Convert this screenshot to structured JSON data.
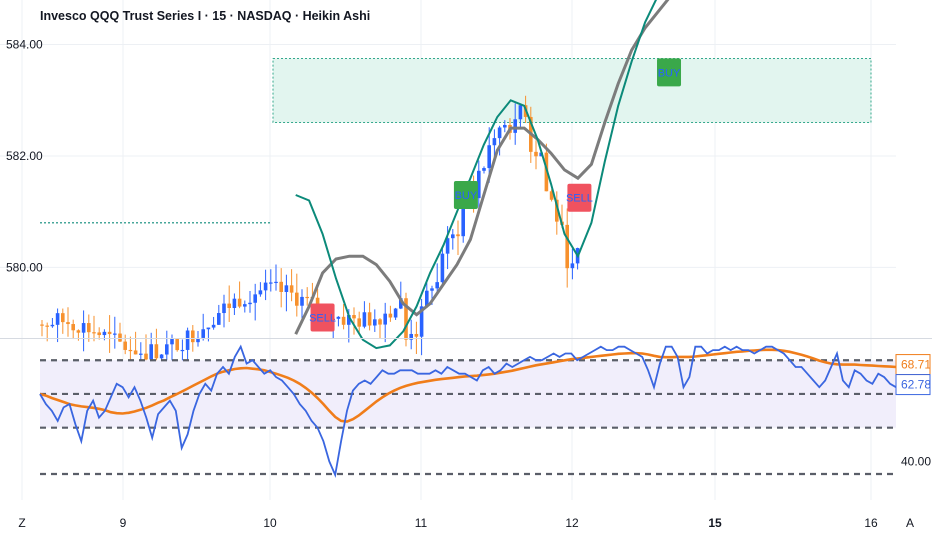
{
  "header": {
    "symbol_title": "Invesco QQQ Trust Series I · 15 · NASDAQ · Heikin Ashi"
  },
  "colors": {
    "up": "#2962ff",
    "down": "#f7912d",
    "teal": "#0c8a7a",
    "gray_ma": "#7c7c7c",
    "zone_fill": "#e2f5ef",
    "zone_border": "#34a88c",
    "buy_badge": "#3aa84a",
    "sell_badge": "#f0525f",
    "rsi": "#3a66e0",
    "rsi_ma": "#f07d1a",
    "band_fill": "#f1eefb",
    "grid": "#edf0f4"
  },
  "chart_data": [
    {
      "type": "candlestick",
      "name": "price",
      "y_axis_labels": [
        "584.00",
        "582.00",
        "580.00"
      ],
      "ylim": [
        578.75,
        584.8
      ],
      "x_axis_labels": [
        "Z",
        "9",
        "9",
        "10",
        "11",
        "12",
        "15",
        "16",
        "A"
      ],
      "bold_x_labels": [
        "15"
      ],
      "ma_fast": [
        581.3,
        581.2,
        580.6,
        579.8,
        579.1,
        578.7,
        578.55,
        578.6,
        578.85,
        579.3,
        579.9,
        580.4,
        581.0,
        581.6,
        582.2,
        582.7,
        583.0,
        582.9,
        582.3,
        581.5,
        580.6,
        580.2,
        580.8,
        581.9,
        582.9,
        583.7,
        584.4,
        584.9,
        585.3
      ],
      "ma_slow": [
        578.8,
        579.3,
        579.9,
        580.15,
        580.2,
        580.2,
        580.05,
        579.75,
        579.35,
        579.15,
        579.35,
        579.7,
        580.05,
        580.5,
        581.3,
        582.1,
        582.5,
        582.5,
        582.3,
        582.05,
        581.75,
        581.6,
        581.85,
        582.6,
        583.3,
        583.9,
        584.3,
        584.6,
        584.9
      ],
      "ma_x": [
        9.9,
        10.35,
        10.8,
        11.25,
        11.7,
        12.15,
        12.6,
        13.05,
        13.5,
        13.95,
        14.4,
        14.85,
        15.3,
        15.75,
        16.2,
        16.65,
        17.1,
        17.55,
        18.0,
        18.45,
        18.9,
        19.35,
        19.8,
        20.25,
        20.7,
        21.15,
        21.6,
        22.05,
        22.5
      ],
      "resistance_zone": [
        582.6,
        583.75
      ],
      "support_line": 580.8,
      "signals": [
        {
          "label": "SELL",
          "x": 10.8,
          "y": 579.1,
          "kind": "sell"
        },
        {
          "label": "BUY",
          "x": 15.6,
          "y": 581.3,
          "kind": "buy"
        },
        {
          "label": "SELL",
          "x": 19.4,
          "y": 581.25,
          "kind": "sell"
        },
        {
          "label": "BUY",
          "x": 22.4,
          "y": 583.5,
          "kind": "buy"
        }
      ]
    },
    {
      "type": "line",
      "name": "rsi",
      "y_axis_labels": [
        "68.71",
        "62.78",
        "40.00"
      ],
      "ylim": [
        33,
        76
      ],
      "levels": [
        70,
        60,
        50,
        40
      ],
      "rsi": [
        60,
        57,
        55,
        52,
        56,
        57,
        51,
        46,
        55,
        58,
        53,
        55,
        59,
        63,
        62,
        59,
        62,
        58,
        53,
        47,
        54,
        56,
        58,
        55,
        44,
        48,
        55,
        60,
        63,
        61,
        66,
        68,
        66,
        71,
        74,
        69,
        70,
        68,
        66,
        67,
        65,
        64,
        62,
        60,
        57,
        55,
        52,
        50,
        46,
        40,
        36,
        46,
        55,
        61,
        63,
        64,
        63,
        65,
        67,
        66,
        66,
        67,
        67,
        67,
        66,
        66,
        66,
        67,
        66,
        68,
        67,
        66,
        66,
        65,
        64,
        67,
        68,
        66,
        67,
        69,
        68,
        69,
        70,
        71,
        70,
        70,
        71,
        72,
        71,
        72,
        72,
        70,
        71,
        72,
        73,
        74,
        73,
        73,
        74,
        74,
        73,
        72,
        71,
        67,
        62,
        69,
        74,
        74,
        71,
        62,
        65,
        74,
        74,
        72,
        73,
        73,
        74,
        73,
        74,
        73,
        73,
        72,
        73,
        74,
        74,
        73,
        72,
        70,
        68,
        68,
        66,
        64,
        62,
        64,
        68,
        72,
        64,
        62,
        67,
        66,
        64,
        63,
        66,
        65,
        63,
        62
      ],
      "rsi_ma": [
        60,
        59.5,
        58.8,
        58.2,
        57.6,
        57.0,
        56.6,
        56.3,
        56.1,
        55.9,
        55.6,
        55.2,
        54.6,
        54.3,
        54.2,
        54.4,
        54.8,
        55.3,
        55.9,
        56.6,
        57.4,
        58.1,
        59.0,
        59.8,
        60.7,
        61.6,
        62.5,
        63.4,
        64.3,
        65.2,
        66.0,
        66.6,
        67.0,
        67.4,
        67.6,
        67.7,
        67.5,
        67.3,
        67.0,
        66.5,
        66.0,
        65.4,
        64.8,
        64.0,
        63.0,
        61.8,
        60.4,
        58.8,
        57.0,
        55.0,
        53.2,
        52.0,
        51.8,
        52.5,
        53.6,
        55.0,
        56.4,
        57.8,
        59.0,
        60.1,
        61.0,
        61.8,
        62.4,
        62.9,
        63.3,
        63.6,
        63.9,
        64.2,
        64.4,
        64.6,
        64.8,
        65.0,
        65.2,
        65.3,
        65.4,
        65.6,
        65.8,
        66.0,
        66.3,
        66.6,
        66.9,
        67.3,
        67.7,
        68.1,
        68.5,
        68.8,
        69.1,
        69.4,
        69.7,
        70.0,
        70.3,
        70.5,
        70.7,
        70.9,
        71.1,
        71.3,
        71.5,
        71.7,
        71.9,
        72.0,
        72.1,
        72.1,
        72.0,
        71.7,
        71.3,
        71.0,
        70.9,
        70.9,
        71.0,
        71.0,
        71.0,
        71.1,
        71.3,
        71.5,
        71.7,
        71.9,
        72.1,
        72.3,
        72.5,
        72.6,
        72.8,
        72.9,
        73.0,
        73.1,
        73.1,
        73.0,
        72.8,
        72.5,
        72.1,
        71.6,
        71.1,
        70.5,
        69.9,
        69.4,
        69.0,
        68.8,
        68.7,
        68.7,
        68.7,
        68.6,
        68.5,
        68.4,
        68.3,
        68.2,
        68.1,
        68.0
      ]
    }
  ]
}
